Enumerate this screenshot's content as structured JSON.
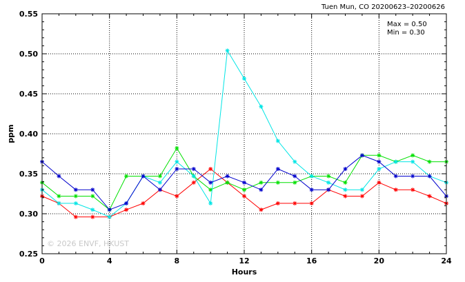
{
  "chart_data": {
    "type": "line",
    "title": "Tuen Mun, CO 20200623–20200626",
    "xlabel": "Hours",
    "ylabel": "ppm",
    "xlim": [
      0,
      24
    ],
    "ylim": [
      0.25,
      0.55
    ],
    "xticks": [
      0,
      4,
      8,
      12,
      16,
      20,
      24
    ],
    "yticks": [
      0.25,
      0.3,
      0.35,
      0.4,
      0.45,
      0.5,
      0.55
    ],
    "grid": true,
    "stats": {
      "max_label": "Max = 0.50",
      "min_label": "Min = 0.30"
    },
    "watermark": "© 2026  ENVF, HKUST",
    "series": [
      {
        "color": "#ff0000",
        "x": [
          0,
          1,
          2,
          3,
          4,
          5,
          6,
          7,
          8,
          9,
          10,
          11,
          12,
          13,
          14,
          15,
          16,
          17,
          18,
          19,
          20,
          21,
          22,
          23,
          24
        ],
        "values": [
          0.322,
          0.313,
          0.296,
          0.296,
          0.296,
          0.305,
          0.313,
          0.33,
          0.322,
          0.339,
          0.356,
          0.339,
          0.322,
          0.305,
          0.313,
          0.313,
          0.313,
          0.33,
          0.322,
          0.322,
          0.339,
          0.33,
          0.33,
          0.322,
          0.313
        ]
      },
      {
        "color": "#00e000",
        "x": [
          0,
          1,
          2,
          3,
          4,
          5,
          6,
          7,
          8,
          9,
          10,
          11,
          12,
          13,
          14,
          15,
          16,
          17,
          18,
          19,
          20,
          21,
          22,
          23,
          24
        ],
        "values": [
          0.339,
          0.322,
          0.322,
          0.322,
          0.305,
          0.347,
          0.347,
          0.347,
          0.382,
          0.347,
          0.33,
          0.339,
          0.33,
          0.339,
          0.339,
          0.339,
          0.347,
          0.347,
          0.339,
          0.373,
          0.373,
          0.365,
          0.373,
          0.365,
          0.365
        ]
      },
      {
        "color": "#00e5e5",
        "x": [
          0,
          1,
          2,
          3,
          4,
          5,
          6,
          7,
          8,
          9,
          10,
          11,
          12,
          13,
          14,
          15,
          16,
          17,
          18,
          19,
          20,
          21,
          22,
          23,
          24
        ],
        "values": [
          0.33,
          0.313,
          0.313,
          0.305,
          0.296,
          0.313,
          0.347,
          0.339,
          0.365,
          0.347,
          0.313,
          0.504,
          0.469,
          0.434,
          0.391,
          0.365,
          0.347,
          0.339,
          0.33,
          0.33,
          0.356,
          0.365,
          0.365,
          0.347,
          0.339
        ]
      },
      {
        "color": "#0000cc",
        "x": [
          0,
          1,
          2,
          3,
          4,
          5,
          6,
          7,
          8,
          9,
          10,
          11,
          12,
          13,
          14,
          15,
          16,
          17,
          18,
          19,
          20,
          21,
          22,
          23,
          24
        ],
        "values": [
          0.365,
          0.347,
          0.33,
          0.33,
          0.305,
          0.313,
          0.347,
          0.33,
          0.356,
          0.356,
          0.339,
          0.347,
          0.339,
          0.33,
          0.356,
          0.347,
          0.33,
          0.33,
          0.356,
          0.373,
          0.365,
          0.347,
          0.347,
          0.347,
          0.322
        ]
      }
    ]
  }
}
